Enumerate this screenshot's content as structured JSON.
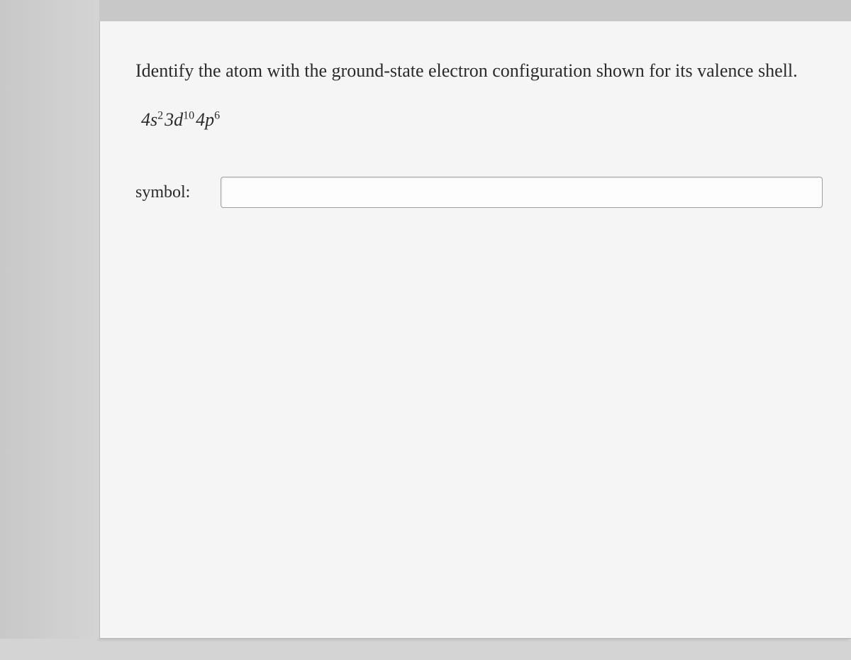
{
  "question": {
    "prompt": "Identify the atom with the ground-state electron configuration shown for its valence shell.",
    "formula": {
      "terms": [
        {
          "base": "4s",
          "sup": "2"
        },
        {
          "base": "3d",
          "sup": "10"
        },
        {
          "base": "4p",
          "sup": "6"
        }
      ]
    },
    "answer_label": "symbol:",
    "answer_value": "",
    "answer_placeholder": ""
  },
  "styling": {
    "page_bg": "#d4d4d4",
    "panel_bg": "#f5f5f5",
    "text_color": "#2a2a2a",
    "border_color": "#a0a0a0",
    "input_bg": "#fdfdfd",
    "font_family": "Georgia, Times New Roman, serif",
    "question_fontsize": 26,
    "label_fontsize": 24,
    "formula_fontsize": 26,
    "sup_fontsize": 16
  }
}
